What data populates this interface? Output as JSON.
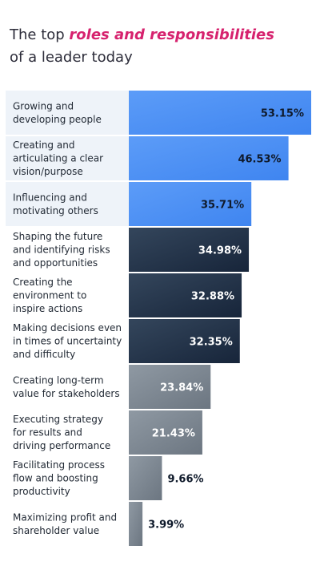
{
  "title": {
    "prefix": "The top ",
    "highlight": "roles and responsibilities",
    "line2": "of a leader today"
  },
  "colors": {
    "highlight": "#d6226e",
    "blue": "#4a8ef4",
    "dark": "#1f2b3d",
    "gray": "#7b8590",
    "row_bg": "#eef3f9"
  },
  "chart_data": {
    "type": "bar",
    "orientation": "horizontal",
    "title": "The top roles and responsibilities of a leader today",
    "categories": [
      [
        "Growing and",
        "developing people"
      ],
      [
        "Creating and",
        "articulating a clear",
        "vision/purpose"
      ],
      [
        "Influencing and",
        "motivating others"
      ],
      [
        "Shaping the future",
        "and identifying risks",
        "and opportunities"
      ],
      [
        "Creating the",
        "environment to",
        "inspire actions"
      ],
      [
        "Making decisions even",
        "in times of uncertainty",
        "and difficulty"
      ],
      [
        "Creating long-term",
        "value for stakeholders"
      ],
      [
        "Executing strategy",
        "for results and",
        "driving performance"
      ],
      [
        "Facilitating process",
        "flow and boosting",
        "productivity"
      ],
      [
        "Maximizing profit and",
        "shareholder value"
      ]
    ],
    "values": [
      53.15,
      46.53,
      35.71,
      34.98,
      32.88,
      32.35,
      23.84,
      21.43,
      9.66,
      3.99
    ],
    "value_labels": [
      "53.15%",
      "46.53%",
      "35.71%",
      "34.98%",
      "32.88%",
      "32.35%",
      "23.84%",
      "21.43%",
      "9.66%",
      "3.99%"
    ],
    "groups": [
      "blue",
      "blue",
      "blue",
      "dark",
      "dark",
      "dark",
      "gray",
      "gray",
      "gray",
      "gray"
    ],
    "xlim": [
      0,
      53.15
    ],
    "grid": false,
    "legend": "none"
  }
}
